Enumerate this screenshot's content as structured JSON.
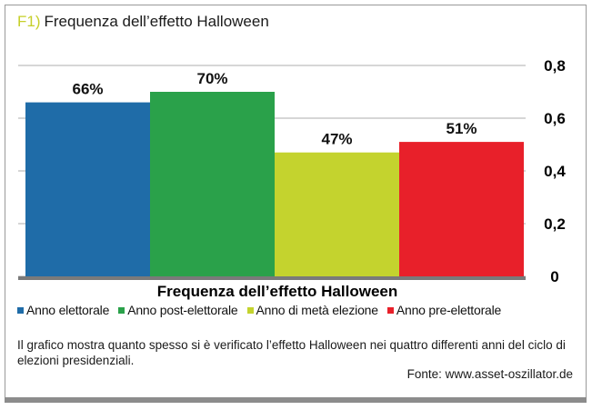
{
  "figure_label": "F1)",
  "title": "Frequenza dell’effetto Halloween",
  "caption": "Il grafico mostra quanto spesso si è verificato l’effetto Halloween nei quattro differenti anni del ciclo di elezioni presidenziali.",
  "source": "Fonte: www.asset-oszillator.de",
  "chart_data": {
    "type": "bar",
    "title": "",
    "xlabel": "Frequenza dell’effetto Halloween",
    "ylabel": "",
    "categories": [
      "Anno elettorale",
      "Anno post-elettorale",
      "Anno di metà elezione",
      "Anno pre-elettorale"
    ],
    "values": [
      0.66,
      0.7,
      0.47,
      0.51
    ],
    "data_labels": [
      "66%",
      "70%",
      "47%",
      "51%"
    ],
    "colors": [
      "#1f6ca8",
      "#2aa14a",
      "#c4d32e",
      "#e8202a"
    ],
    "ylim": [
      0,
      0.8
    ],
    "yticks": [
      0,
      0.2,
      0.4,
      0.6,
      0.8
    ],
    "ytick_labels": [
      "0",
      "0,2",
      "0,4",
      "0,6",
      "0,8"
    ],
    "y_axis_side": "right",
    "grid": true,
    "legend_position": "bottom-left"
  }
}
